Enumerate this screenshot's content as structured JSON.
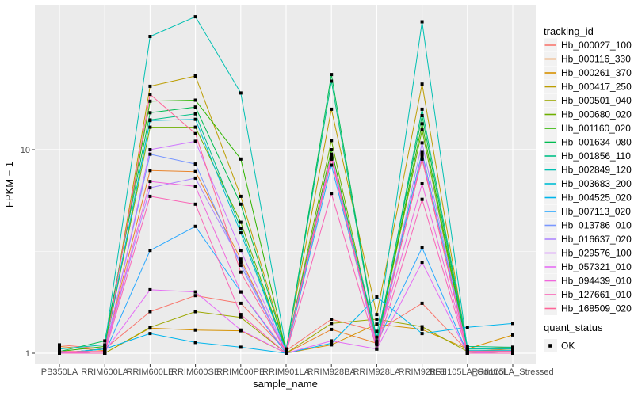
{
  "figure": {
    "y_axis": {
      "title": "FPKM + 1",
      "tick_top": "10",
      "tick_bottom": "1"
    },
    "x_axis": {
      "title": "sample_name"
    },
    "legend_tracking": {
      "title": "tracking_id"
    },
    "legend_quant": {
      "title": "quant_status",
      "ok_label": "OK"
    }
  },
  "colors": {
    "panel_bg": "#EBEBEB",
    "grid": "#FFFFFF",
    "axis_text": "#4D4D4D",
    "title_text": "#000000",
    "legend_key_bg": "#F2F2F2",
    "marker": "#000000",
    "tick_mark": "#333333"
  },
  "chart_data": {
    "type": "line",
    "y_scale": "log10",
    "ylim": [
      0.9,
      51
    ],
    "y_ticks": [
      1,
      10
    ],
    "y_minor_ticks": [
      3.162,
      31.62
    ],
    "grid": true,
    "legend_position": "right",
    "point_shape": "filled-black-square",
    "point_legend": {
      "title": "quant_status",
      "label": "OK"
    },
    "x": [
      "PB350LA",
      "RRIM600LA",
      "RRIM600LE",
      "RRIM600SE",
      "RRIM600PE",
      "RRIM901LA",
      "RRIM928BA",
      "RRIM928LA",
      "RRIM928LE",
      "RRII105LA_Control",
      "RRII105LA_Stressed"
    ],
    "series": [
      {
        "name": "Hb_000027_100",
        "color": "#F8766D",
        "values": [
          1.1,
          1.05,
          1.6,
          1.92,
          1.76,
          1.03,
          1.47,
          1.28,
          1.76,
          1.03,
          1.03
        ]
      },
      {
        "name": "Hb_000116_330",
        "color": "#E9842C",
        "values": [
          1.08,
          1.03,
          7.9,
          7.8,
          2.9,
          1.0,
          1.31,
          1.12,
          9.0,
          1.02,
          1.05
        ]
      },
      {
        "name": "Hb_000261_370",
        "color": "#D69100",
        "values": [
          1.0,
          1.0,
          1.33,
          1.3,
          1.29,
          1.0,
          1.1,
          1.39,
          1.31,
          1.05,
          1.23
        ]
      },
      {
        "name": "Hb_000417_250",
        "color": "#BC9D00",
        "values": [
          1.0,
          1.02,
          20.5,
          23.0,
          5.9,
          1.05,
          15.8,
          1.55,
          21.0,
          1.05,
          1.07
        ]
      },
      {
        "name": "Hb_000501_040",
        "color": "#9CA700",
        "values": [
          1.0,
          1.0,
          1.34,
          1.6,
          1.5,
          1.0,
          1.4,
          1.47,
          1.35,
          1.02,
          1.02
        ]
      },
      {
        "name": "Hb_000680_020",
        "color": "#6FB000",
        "values": [
          1.0,
          1.05,
          12.9,
          12.9,
          4.4,
          1.02,
          11.1,
          1.12,
          12.5,
          1.0,
          1.02
        ]
      },
      {
        "name": "Hb_001160_020",
        "color": "#2FB600",
        "values": [
          1.02,
          1.08,
          17.3,
          17.5,
          9.0,
          1.02,
          10.0,
          1.12,
          13.4,
          1.02,
          1.02
        ]
      },
      {
        "name": "Hb_001634_080",
        "color": "#00BC51",
        "values": [
          1.02,
          1.15,
          15.2,
          16.2,
          5.4,
          1.03,
          23.4,
          1.15,
          14.7,
          1.05,
          1.05
        ]
      },
      {
        "name": "Hb_001856_110",
        "color": "#00C087",
        "values": [
          1.0,
          1.05,
          14.0,
          15.0,
          4.1,
          1.02,
          21.7,
          1.12,
          15.8,
          1.08,
          1.07
        ]
      },
      {
        "name": "Hb_002849_120",
        "color": "#00C0B2",
        "values": [
          1.05,
          1.1,
          36.0,
          45.0,
          19.0,
          1.05,
          9.3,
          1.2,
          42.5,
          1.05,
          1.05
        ]
      },
      {
        "name": "Hb_003683_200",
        "color": "#00BDD4",
        "values": [
          1.0,
          1.05,
          13.9,
          14.1,
          3.9,
          1.02,
          9.0,
          1.12,
          9.7,
          1.03,
          1.03
        ]
      },
      {
        "name": "Hb_004525_020",
        "color": "#00B5EC",
        "values": [
          1.0,
          1.05,
          1.25,
          1.13,
          1.07,
          1.0,
          1.12,
          1.89,
          1.25,
          1.34,
          1.4
        ]
      },
      {
        "name": "Hb_007113_020",
        "color": "#29A8FF",
        "values": [
          1.0,
          1.0,
          3.2,
          4.2,
          2.0,
          1.0,
          8.4,
          1.12,
          3.3,
          1.0,
          1.0
        ]
      },
      {
        "name": "Hb_013786_010",
        "color": "#7997FF",
        "values": [
          1.0,
          1.02,
          9.5,
          8.5,
          2.7,
          1.02,
          9.2,
          1.05,
          9.3,
          1.02,
          1.02
        ]
      },
      {
        "name": "Hb_016637_020",
        "color": "#AE87FF",
        "values": [
          1.0,
          1.02,
          6.5,
          7.25,
          2.8,
          1.02,
          9.0,
          1.05,
          10.8,
          1.02,
          1.02
        ]
      },
      {
        "name": "Hb_029576_100",
        "color": "#CF78FF",
        "values": [
          1.0,
          1.0,
          10.0,
          11.0,
          3.2,
          1.02,
          9.5,
          1.05,
          9.5,
          1.0,
          1.02
        ]
      },
      {
        "name": "Hb_057321_010",
        "color": "#E56DF5",
        "values": [
          1.0,
          1.02,
          2.05,
          2.0,
          1.3,
          1.0,
          1.15,
          1.05,
          2.8,
          1.0,
          1.0
        ]
      },
      {
        "name": "Hb_094439_010",
        "color": "#F166DC",
        "values": [
          1.0,
          1.02,
          6.98,
          6.6,
          2.0,
          1.02,
          9.3,
          1.1,
          6.8,
          1.02,
          1.02
        ]
      },
      {
        "name": "Hb_127661_010",
        "color": "#FA64B6",
        "values": [
          1.0,
          1.0,
          5.9,
          5.4,
          1.55,
          1.0,
          6.1,
          1.05,
          5.7,
          1.0,
          1.0
        ]
      },
      {
        "name": "Hb_168509_020",
        "color": "#FF6598",
        "values": [
          1.02,
          1.02,
          18.7,
          12.0,
          2.5,
          1.02,
          9.0,
          1.1,
          9.0,
          1.02,
          1.02
        ]
      }
    ]
  }
}
